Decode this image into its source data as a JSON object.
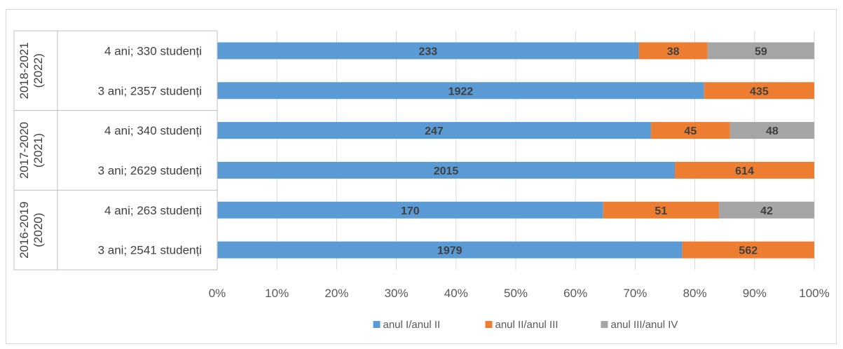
{
  "chart_data": {
    "type": "bar",
    "orientation": "horizontal",
    "stacked": "100%",
    "groups": [
      {
        "label": "2018-2021\n(2022)",
        "lines": [
          "2018-2021",
          "(2022)"
        ]
      },
      {
        "label": "2017-2020\n(2021)",
        "lines": [
          "2017-2020",
          "(2021)"
        ]
      },
      {
        "label": "2016-2019\n(2020)",
        "lines": [
          "2016-2019",
          "(2020)"
        ]
      }
    ],
    "categories": [
      "4 ani; 330 studenți",
      "3 ani; 2357 studenți",
      "4 ani; 340 studenți",
      "3 ani; 2629 studenți",
      "4 ani; 263 studenți",
      "3 ani; 2541 studenți"
    ],
    "category_group": [
      0,
      0,
      1,
      1,
      2,
      2
    ],
    "series": [
      {
        "name": "anul I/anul II",
        "color": "#5b9bd5",
        "values": [
          233,
          1922,
          247,
          2015,
          170,
          1979
        ]
      },
      {
        "name": "anul II/anul III",
        "color": "#ed7d31",
        "values": [
          38,
          435,
          45,
          614,
          51,
          562
        ]
      },
      {
        "name": "anul III/anul IV",
        "color": "#a5a5a5",
        "values": [
          59,
          null,
          48,
          null,
          42,
          null
        ]
      }
    ],
    "xlim": [
      0,
      100
    ],
    "xticks": [
      "0%",
      "10%",
      "20%",
      "30%",
      "40%",
      "50%",
      "60%",
      "70%",
      "80%",
      "90%",
      "100%"
    ],
    "grid": true,
    "legend": "bottom"
  }
}
